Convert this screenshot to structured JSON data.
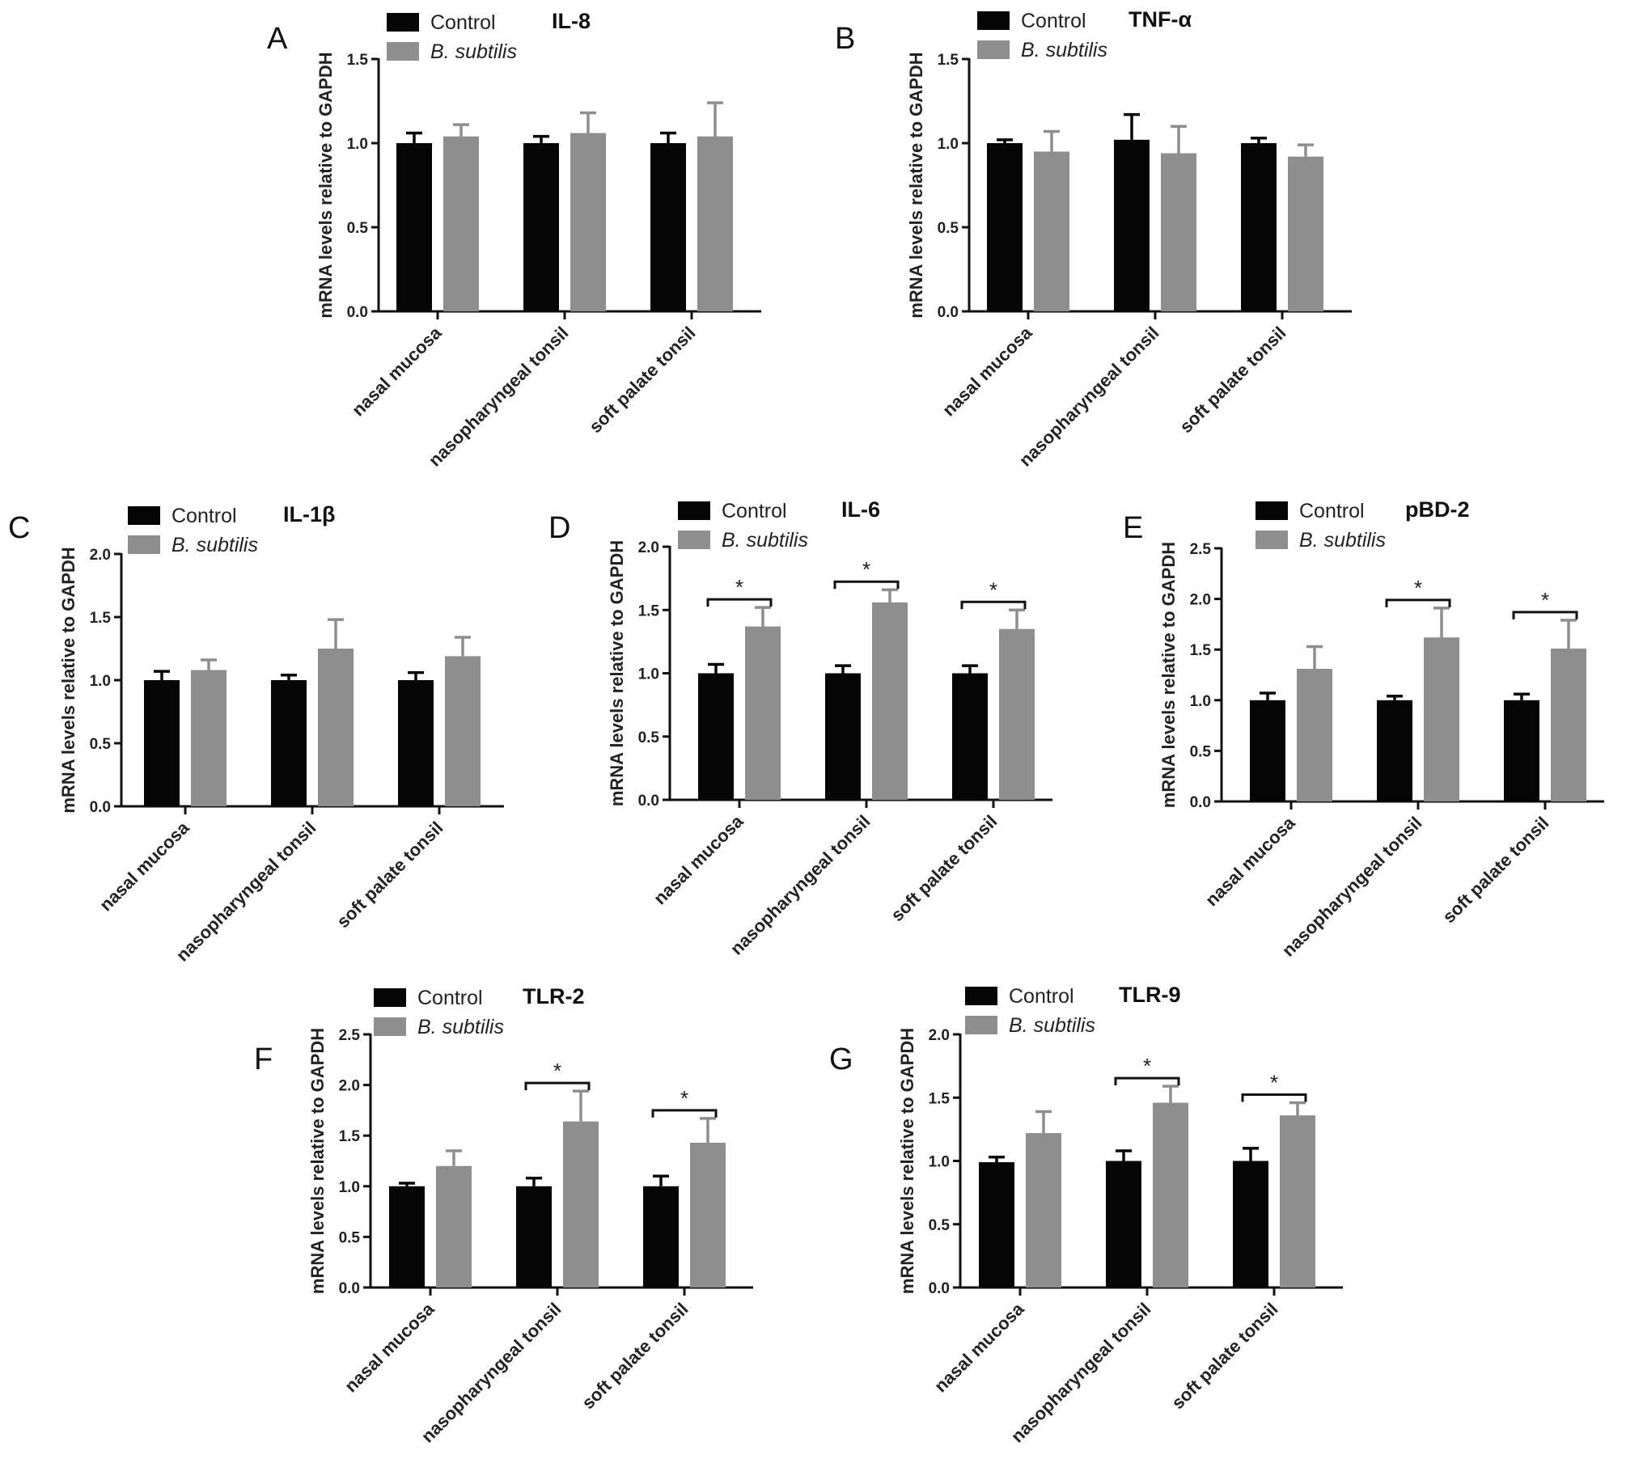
{
  "colors": {
    "control": "#050505",
    "treatment": "#8e8e8e",
    "axis": "#111111"
  },
  "legend": {
    "control": "Control",
    "treatment": "B. subtilis"
  },
  "significance_marker": "*",
  "chart_data": [
    {
      "panel": "A",
      "type": "bar",
      "title": "IL-8",
      "ylabel": "mRNA levels relative to GAPDH",
      "ylim": [
        0,
        1.5
      ],
      "yticks": [
        "0.0",
        "0.5",
        "1.0",
        "1.5"
      ],
      "categories": [
        "nasal mucosa",
        "nasopharyngeal tonsil",
        "soft palate tonsil"
      ],
      "series": [
        {
          "name": "Control",
          "values": [
            1.0,
            1.0,
            1.0
          ],
          "errors": [
            0.06,
            0.04,
            0.06
          ]
        },
        {
          "name": "B. subtilis",
          "values": [
            1.04,
            1.06,
            1.04
          ],
          "errors": [
            0.07,
            0.12,
            0.2
          ]
        }
      ],
      "significant": []
    },
    {
      "panel": "B",
      "type": "bar",
      "title": "TNF-α",
      "ylabel": "mRNA levels relative to GAPDH",
      "ylim": [
        0,
        1.5
      ],
      "yticks": [
        "0.0",
        "0.5",
        "1.0",
        "1.5"
      ],
      "categories": [
        "nasal mucosa",
        "nasopharyngeal tonsil",
        "soft palate tonsil"
      ],
      "series": [
        {
          "name": "Control",
          "values": [
            1.0,
            1.02,
            1.0
          ],
          "errors": [
            0.02,
            0.15,
            0.03
          ]
        },
        {
          "name": "B. subtilis",
          "values": [
            0.95,
            0.94,
            0.92
          ],
          "errors": [
            0.12,
            0.16,
            0.07
          ]
        }
      ],
      "significant": []
    },
    {
      "panel": "C",
      "type": "bar",
      "title": "IL-1β",
      "ylabel": "mRNA levels relative to GAPDH",
      "ylim": [
        0,
        2.0
      ],
      "yticks": [
        "0.0",
        "0.5",
        "1.0",
        "1.5",
        "2.0"
      ],
      "categories": [
        "nasal mucosa",
        "nasopharyngeal tonsil",
        "soft palate tonsil"
      ],
      "series": [
        {
          "name": "Control",
          "values": [
            1.0,
            1.0,
            1.0
          ],
          "errors": [
            0.07,
            0.04,
            0.06
          ]
        },
        {
          "name": "B. subtilis",
          "values": [
            1.08,
            1.25,
            1.19
          ],
          "errors": [
            0.08,
            0.23,
            0.15
          ]
        }
      ],
      "significant": []
    },
    {
      "panel": "D",
      "type": "bar",
      "title": "IL-6",
      "ylabel": "mRNA levels relative to GAPDH",
      "ylim": [
        0,
        2.0
      ],
      "yticks": [
        "0.0",
        "0.5",
        "1.0",
        "1.5",
        "2.0"
      ],
      "categories": [
        "nasal mucosa",
        "nasopharyngeal tonsil",
        "soft palate tonsil"
      ],
      "series": [
        {
          "name": "Control",
          "values": [
            1.0,
            1.0,
            1.0
          ],
          "errors": [
            0.07,
            0.06,
            0.06
          ]
        },
        {
          "name": "B. subtilis",
          "values": [
            1.37,
            1.56,
            1.35
          ],
          "errors": [
            0.15,
            0.1,
            0.15
          ]
        }
      ],
      "significant": [
        0,
        1,
        2
      ]
    },
    {
      "panel": "E",
      "type": "bar",
      "title": "pBD-2",
      "ylabel": "mRNA levels relative to GAPDH",
      "ylim": [
        0,
        2.5
      ],
      "yticks": [
        "0.0",
        "0.5",
        "1.0",
        "1.5",
        "2.0",
        "2.5"
      ],
      "categories": [
        "nasal mucosa",
        "nasopharyngeal tonsil",
        "soft palate tonsil"
      ],
      "series": [
        {
          "name": "Control",
          "values": [
            1.0,
            1.0,
            1.0
          ],
          "errors": [
            0.07,
            0.04,
            0.06
          ]
        },
        {
          "name": "B. subtilis",
          "values": [
            1.31,
            1.62,
            1.51
          ],
          "errors": [
            0.22,
            0.29,
            0.28
          ]
        }
      ],
      "significant": [
        1,
        2
      ]
    },
    {
      "panel": "F",
      "type": "bar",
      "title": "TLR-2",
      "ylabel": "mRNA levels relative to GAPDH",
      "ylim": [
        0,
        2.5
      ],
      "yticks": [
        "0.0",
        "0.5",
        "1.0",
        "1.5",
        "2.0",
        "2.5"
      ],
      "categories": [
        "nasal mucosa",
        "nasopharyngeal tonsil",
        "soft palate tonsil"
      ],
      "series": [
        {
          "name": "Control",
          "values": [
            1.0,
            1.0,
            1.0
          ],
          "errors": [
            0.03,
            0.08,
            0.1
          ]
        },
        {
          "name": "B. subtilis",
          "values": [
            1.2,
            1.64,
            1.43
          ],
          "errors": [
            0.15,
            0.3,
            0.24
          ]
        }
      ],
      "significant": [
        1,
        2
      ]
    },
    {
      "panel": "G",
      "type": "bar",
      "title": "TLR-9",
      "ylabel": "mRNA levels relative to GAPDH",
      "ylim": [
        0,
        2.0
      ],
      "yticks": [
        "0.0",
        "0.5",
        "1.0",
        "1.5",
        "2.0"
      ],
      "categories": [
        "nasal mucosa",
        "nasopharyngeal tonsil",
        "soft palate tonsil"
      ],
      "series": [
        {
          "name": "Control",
          "values": [
            0.99,
            1.0,
            1.0
          ],
          "errors": [
            0.04,
            0.08,
            0.1
          ]
        },
        {
          "name": "B. subtilis",
          "values": [
            1.22,
            1.46,
            1.36
          ],
          "errors": [
            0.17,
            0.13,
            0.1
          ]
        }
      ],
      "significant": [
        1,
        2
      ]
    }
  ]
}
